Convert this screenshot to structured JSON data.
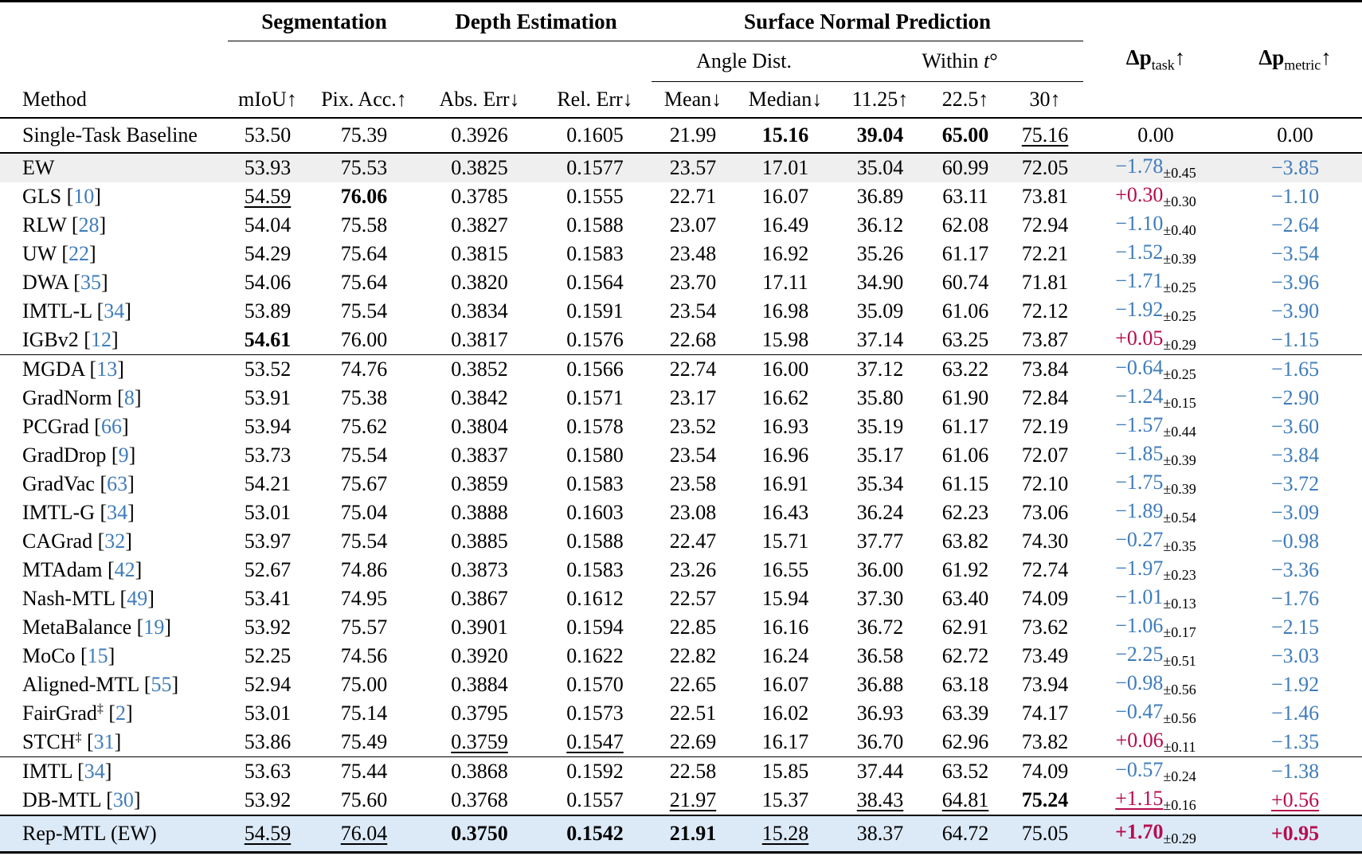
{
  "colors": {
    "accent_blue": "#3f7cba",
    "accent_red": "#b60d4e",
    "row_gray": "#efefef",
    "row_lightblue": "#dce9f7",
    "black": "#000000"
  },
  "header": {
    "method_label": "Method",
    "groups": [
      {
        "label": "Segmentation",
        "span": 2
      },
      {
        "label": "Depth Estimation",
        "span": 2
      },
      {
        "label": "Surface Normal Prediction",
        "span": 5
      }
    ],
    "subgroups": [
      {
        "label": "Angle Dist.",
        "span": 2
      },
      {
        "label": "Within",
        "t_italic": "t",
        "degree": "°",
        "span": 3
      }
    ],
    "columns": [
      "mIoU↑",
      "Pix. Acc.↑",
      "Abs. Err↓",
      "Rel. Err↓",
      "Mean↓",
      "Median↓",
      "11.25↑",
      "22.5↑",
      "30↑"
    ],
    "delta_task": {
      "symbol": "Δp",
      "sub": "task",
      "arrow": "↑"
    },
    "delta_metric": {
      "symbol": "Δp",
      "sub": "metric",
      "arrow": "↑"
    }
  },
  "table": {
    "rows": [
      {
        "method": "Single-Task Baseline",
        "base": true,
        "cells": [
          "53.50",
          "75.39",
          "0.3926",
          "0.1605",
          "21.99",
          "15.16",
          "39.04",
          "65.00",
          "75.16"
        ],
        "fmt": {
          "5": "b",
          "6": "b",
          "7": "b",
          "8": "u"
        },
        "dtask": {
          "v": "0.00",
          "c": "black"
        },
        "dmetric": {
          "v": "0.00",
          "c": "black"
        }
      },
      {
        "method": "EW",
        "bg": "row_gray",
        "cells": [
          "53.93",
          "75.53",
          "0.3825",
          "0.1577",
          "23.57",
          "17.01",
          "35.04",
          "60.99",
          "72.05"
        ],
        "dtask": {
          "v": "−1.78",
          "pm": "0.45",
          "c": "blue"
        },
        "dmetric": {
          "v": "−3.85",
          "c": "blue"
        }
      },
      {
        "method": "GLS",
        "ref": "10",
        "cells": [
          "54.59",
          "76.06",
          "0.3785",
          "0.1555",
          "22.71",
          "16.07",
          "36.89",
          "63.11",
          "73.81"
        ],
        "fmt": {
          "0": "u",
          "1": "b"
        },
        "dtask": {
          "v": "+0.30",
          "pm": "0.30",
          "c": "red"
        },
        "dmetric": {
          "v": "−1.10",
          "c": "blue"
        }
      },
      {
        "method": "RLW",
        "ref": "28",
        "cells": [
          "54.04",
          "75.58",
          "0.3827",
          "0.1588",
          "23.07",
          "16.49",
          "36.12",
          "62.08",
          "72.94"
        ],
        "dtask": {
          "v": "−1.10",
          "pm": "0.40",
          "c": "blue"
        },
        "dmetric": {
          "v": "−2.64",
          "c": "blue"
        }
      },
      {
        "method": "UW",
        "ref": "22",
        "cells": [
          "54.29",
          "75.64",
          "0.3815",
          "0.1583",
          "23.48",
          "16.92",
          "35.26",
          "61.17",
          "72.21"
        ],
        "dtask": {
          "v": "−1.52",
          "pm": "0.39",
          "c": "blue"
        },
        "dmetric": {
          "v": "−3.54",
          "c": "blue"
        }
      },
      {
        "method": "DWA",
        "ref": "35",
        "cells": [
          "54.06",
          "75.64",
          "0.3820",
          "0.1564",
          "23.70",
          "17.11",
          "34.90",
          "60.74",
          "71.81"
        ],
        "dtask": {
          "v": "−1.71",
          "pm": "0.25",
          "c": "blue"
        },
        "dmetric": {
          "v": "−3.96",
          "c": "blue"
        }
      },
      {
        "method": "IMTL-L",
        "ref": "34",
        "cells": [
          "53.89",
          "75.54",
          "0.3834",
          "0.1591",
          "23.54",
          "16.98",
          "35.09",
          "61.06",
          "72.12"
        ],
        "dtask": {
          "v": "−1.92",
          "pm": "0.25",
          "c": "blue"
        },
        "dmetric": {
          "v": "−3.90",
          "c": "blue"
        }
      },
      {
        "method": "IGBv2",
        "ref": "12",
        "cells": [
          "54.61",
          "76.00",
          "0.3817",
          "0.1576",
          "22.68",
          "15.98",
          "37.14",
          "63.25",
          "73.87"
        ],
        "fmt": {
          "0": "b"
        },
        "dtask": {
          "v": "+0.05",
          "pm": "0.29",
          "c": "red"
        },
        "dmetric": {
          "v": "−1.15",
          "c": "blue"
        }
      },
      {
        "method": "MGDA",
        "ref": "13",
        "sep": true,
        "cells": [
          "53.52",
          "74.76",
          "0.3852",
          "0.1566",
          "22.74",
          "16.00",
          "37.12",
          "63.22",
          "73.84"
        ],
        "dtask": {
          "v": "−0.64",
          "pm": "0.25",
          "c": "blue"
        },
        "dmetric": {
          "v": "−1.65",
          "c": "blue"
        }
      },
      {
        "method": "GradNorm",
        "ref": "8",
        "cells": [
          "53.91",
          "75.38",
          "0.3842",
          "0.1571",
          "23.17",
          "16.62",
          "35.80",
          "61.90",
          "72.84"
        ],
        "dtask": {
          "v": "−1.24",
          "pm": "0.15",
          "c": "blue"
        },
        "dmetric": {
          "v": "−2.90",
          "c": "blue"
        }
      },
      {
        "method": "PCGrad",
        "ref": "66",
        "cells": [
          "53.94",
          "75.62",
          "0.3804",
          "0.1578",
          "23.52",
          "16.93",
          "35.19",
          "61.17",
          "72.19"
        ],
        "dtask": {
          "v": "−1.57",
          "pm": "0.44",
          "c": "blue"
        },
        "dmetric": {
          "v": "−3.60",
          "c": "blue"
        }
      },
      {
        "method": "GradDrop",
        "ref": "9",
        "cells": [
          "53.73",
          "75.54",
          "0.3837",
          "0.1580",
          "23.54",
          "16.96",
          "35.17",
          "61.06",
          "72.07"
        ],
        "dtask": {
          "v": "−1.85",
          "pm": "0.39",
          "c": "blue"
        },
        "dmetric": {
          "v": "−3.84",
          "c": "blue"
        }
      },
      {
        "method": "GradVac",
        "ref": "63",
        "cells": [
          "54.21",
          "75.67",
          "0.3859",
          "0.1583",
          "23.58",
          "16.91",
          "35.34",
          "61.15",
          "72.10"
        ],
        "dtask": {
          "v": "−1.75",
          "pm": "0.39",
          "c": "blue"
        },
        "dmetric": {
          "v": "−3.72",
          "c": "blue"
        }
      },
      {
        "method": "IMTL-G",
        "ref": "34",
        "cells": [
          "53.01",
          "75.04",
          "0.3888",
          "0.1603",
          "23.08",
          "16.43",
          "36.24",
          "62.23",
          "73.06"
        ],
        "dtask": {
          "v": "−1.89",
          "pm": "0.54",
          "c": "blue"
        },
        "dmetric": {
          "v": "−3.09",
          "c": "blue"
        }
      },
      {
        "method": "CAGrad",
        "ref": "32",
        "cells": [
          "53.97",
          "75.54",
          "0.3885",
          "0.1588",
          "22.47",
          "15.71",
          "37.77",
          "63.82",
          "74.30"
        ],
        "dtask": {
          "v": "−0.27",
          "pm": "0.35",
          "c": "blue"
        },
        "dmetric": {
          "v": "−0.98",
          "c": "blue"
        }
      },
      {
        "method": "MTAdam",
        "ref": "42",
        "cells": [
          "52.67",
          "74.86",
          "0.3873",
          "0.1583",
          "23.26",
          "16.55",
          "36.00",
          "61.92",
          "72.74"
        ],
        "dtask": {
          "v": "−1.97",
          "pm": "0.23",
          "c": "blue"
        },
        "dmetric": {
          "v": "−3.36",
          "c": "blue"
        }
      },
      {
        "method": "Nash-MTL",
        "ref": "49",
        "cells": [
          "53.41",
          "74.95",
          "0.3867",
          "0.1612",
          "22.57",
          "15.94",
          "37.30",
          "63.40",
          "74.09"
        ],
        "dtask": {
          "v": "−1.01",
          "pm": "0.13",
          "c": "blue"
        },
        "dmetric": {
          "v": "−1.76",
          "c": "blue"
        }
      },
      {
        "method": "MetaBalance",
        "ref": "19",
        "cells": [
          "53.92",
          "75.57",
          "0.3901",
          "0.1594",
          "22.85",
          "16.16",
          "36.72",
          "62.91",
          "73.62"
        ],
        "dtask": {
          "v": "−1.06",
          "pm": "0.17",
          "c": "blue"
        },
        "dmetric": {
          "v": "−2.15",
          "c": "blue"
        }
      },
      {
        "method": "MoCo",
        "ref": "15",
        "cells": [
          "52.25",
          "74.56",
          "0.3920",
          "0.1622",
          "22.82",
          "16.24",
          "36.58",
          "62.72",
          "73.49"
        ],
        "dtask": {
          "v": "−2.25",
          "pm": "0.51",
          "c": "blue"
        },
        "dmetric": {
          "v": "−3.03",
          "c": "blue"
        }
      },
      {
        "method": "Aligned-MTL",
        "ref": "55",
        "cells": [
          "52.94",
          "75.00",
          "0.3884",
          "0.1570",
          "22.65",
          "16.07",
          "36.88",
          "63.18",
          "73.94"
        ],
        "dtask": {
          "v": "−0.98",
          "pm": "0.56",
          "c": "blue"
        },
        "dmetric": {
          "v": "−1.92",
          "c": "blue"
        }
      },
      {
        "method": "FairGrad",
        "ref": "2",
        "dagger": true,
        "cells": [
          "53.01",
          "75.14",
          "0.3795",
          "0.1573",
          "22.51",
          "16.02",
          "36.93",
          "63.39",
          "74.17"
        ],
        "dtask": {
          "v": "−0.47",
          "pm": "0.56",
          "c": "blue"
        },
        "dmetric": {
          "v": "−1.46",
          "c": "blue"
        }
      },
      {
        "method": "STCH",
        "ref": "31",
        "dagger": true,
        "cells": [
          "53.86",
          "75.49",
          "0.3759",
          "0.1547",
          "22.69",
          "16.17",
          "36.70",
          "62.96",
          "73.82"
        ],
        "fmt": {
          "2": "u",
          "3": "u"
        },
        "dtask": {
          "v": "+0.06",
          "pm": "0.11",
          "c": "red"
        },
        "dmetric": {
          "v": "−1.35",
          "c": "blue"
        }
      },
      {
        "method": "IMTL",
        "ref": "34",
        "sep": true,
        "cells": [
          "53.63",
          "75.44",
          "0.3868",
          "0.1592",
          "22.58",
          "15.85",
          "37.44",
          "63.52",
          "74.09"
        ],
        "dtask": {
          "v": "−0.57",
          "pm": "0.24",
          "c": "blue"
        },
        "dmetric": {
          "v": "−1.38",
          "c": "blue"
        }
      },
      {
        "method": "DB-MTL",
        "ref": "30",
        "cells": [
          "53.92",
          "75.60",
          "0.3768",
          "0.1557",
          "21.97",
          "15.37",
          "38.43",
          "64.81",
          "75.24"
        ],
        "fmt": {
          "4": "u",
          "6": "u",
          "7": "u",
          "8": "b"
        },
        "dtask": {
          "v": "+1.15",
          "pm": "0.16",
          "c": "red",
          "s": "u"
        },
        "dmetric": {
          "v": "+0.56",
          "c": "red",
          "s": "u"
        }
      },
      {
        "method": "Rep-MTL (EW)",
        "bg": "row_lightblue",
        "sep2": true,
        "final": true,
        "cells": [
          "54.59",
          "76.04",
          "0.3750",
          "0.1542",
          "21.91",
          "15.28",
          "38.37",
          "64.72",
          "75.05"
        ],
        "fmt": {
          "0": "u",
          "1": "u",
          "2": "b",
          "3": "b",
          "4": "b",
          "5": "u"
        },
        "dtask": {
          "v": "+1.70",
          "pm": "0.29",
          "c": "red",
          "s": "b"
        },
        "dmetric": {
          "v": "+0.95",
          "c": "red",
          "s": "b"
        }
      }
    ]
  }
}
